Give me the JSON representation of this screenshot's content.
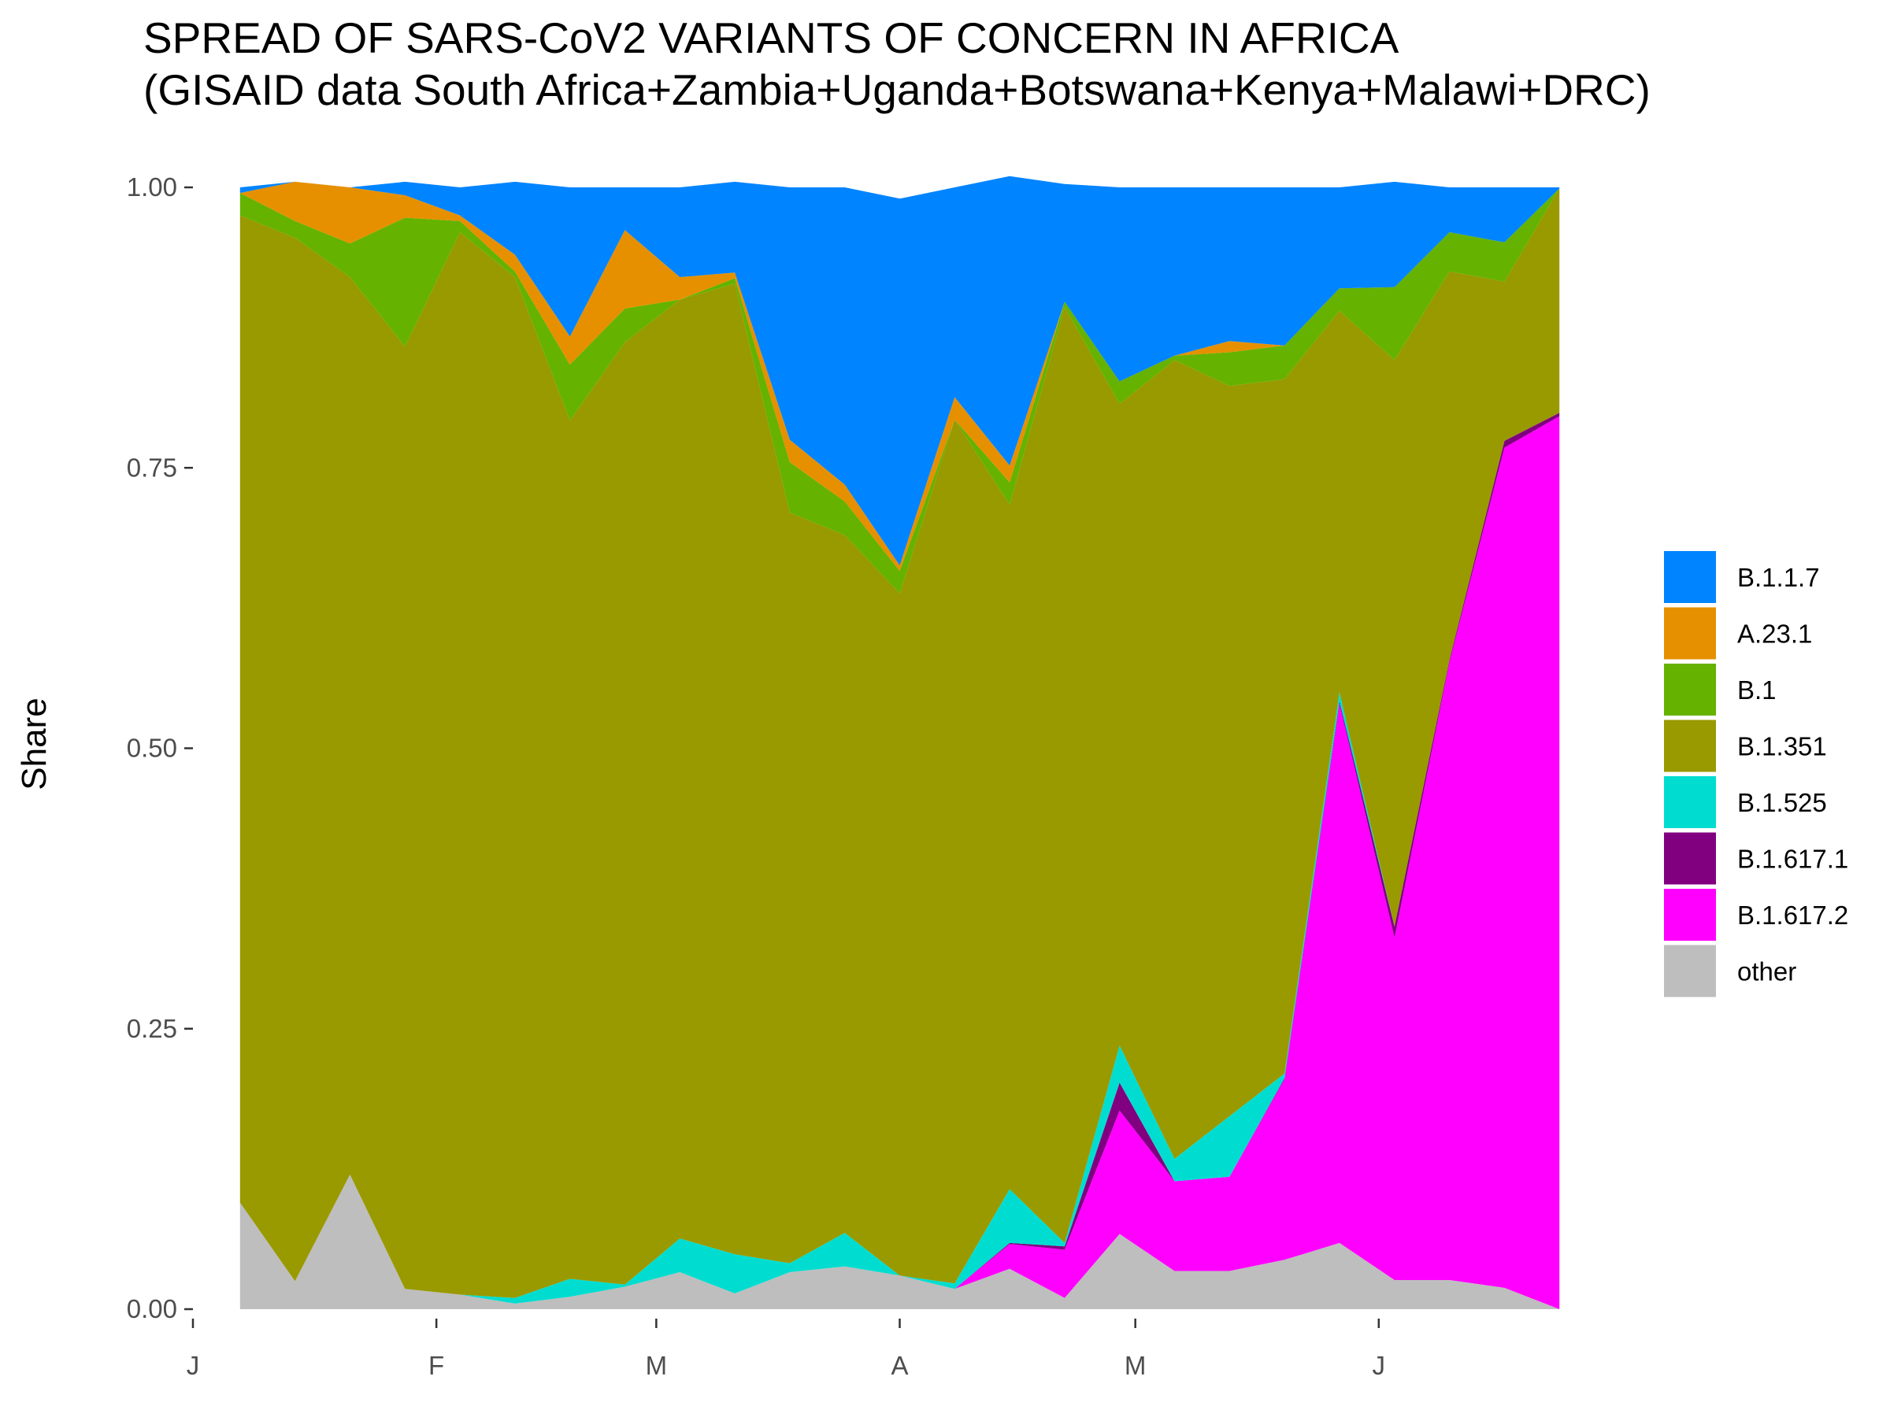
{
  "chart_data": {
    "type": "area",
    "stacked": "fill",
    "title": "SPREAD OF SARS-CoV2 VARIANTS OF CONCERN IN AFRICA",
    "subtitle": "(GISAID data South Africa+Zambia+Uganda+Botswana+Kenya+Malawi+DRC)",
    "xlabel": "",
    "ylabel": "Share",
    "ylim": [
      0,
      1
    ],
    "yticks": [
      "0.00",
      "0.25",
      "0.50",
      "0.75",
      "1.00"
    ],
    "xticks": [
      "J",
      "F",
      "M",
      "A",
      "M",
      "J"
    ],
    "xtick_dates": [
      "2021-01-01",
      "2021-02-01",
      "2021-03-01",
      "2021-04-01",
      "2021-05-01",
      "2021-06-01"
    ],
    "xlim": [
      "2021-01-01",
      "2021-06-30"
    ],
    "legend_position": "right",
    "grid": false,
    "x": [
      "2021-01-07",
      "2021-01-14",
      "2021-01-21",
      "2021-01-28",
      "2021-02-04",
      "2021-02-11",
      "2021-02-18",
      "2021-02-25",
      "2021-03-04",
      "2021-03-11",
      "2021-03-18",
      "2021-03-25",
      "2021-04-01",
      "2021-04-08",
      "2021-04-15",
      "2021-04-22",
      "2021-04-29",
      "2021-05-06",
      "2021-05-13",
      "2021-05-20",
      "2021-05-27",
      "2021-06-03",
      "2021-06-10",
      "2021-06-17",
      "2021-06-24"
    ],
    "series": [
      {
        "name": "other",
        "color": "#BEBEBE",
        "values": [
          0.095,
          0.025,
          0.12,
          0.018,
          0.013,
          0.005,
          0.011,
          0.02,
          0.033,
          0.014,
          0.033,
          0.038,
          0.03,
          0.018,
          0.036,
          0.01,
          0.067,
          0.034,
          0.034,
          0.044,
          0.059,
          0.026,
          0.026,
          0.019,
          0.0
        ]
      },
      {
        "name": "B.1.617.2",
        "color": "#FF00FF",
        "values": [
          0,
          0,
          0,
          0,
          0,
          0,
          0,
          0,
          0,
          0,
          0,
          0,
          0,
          0,
          0.022,
          0.043,
          0.11,
          0.08,
          0.084,
          0.161,
          0.481,
          0.305,
          0.551,
          0.749,
          0.796
        ]
      },
      {
        "name": "B.1.617.1",
        "color": "#800080",
        "values": [
          0,
          0,
          0,
          0,
          0,
          0,
          0,
          0,
          0,
          0,
          0,
          0,
          0,
          0,
          0.001,
          0.003,
          0.025,
          0,
          0,
          0.001,
          0.002,
          0.01,
          0.002,
          0.006,
          0.003
        ]
      },
      {
        "name": "B.1.525",
        "color": "#00DDD0",
        "values": [
          0,
          0,
          0,
          0,
          0,
          0.005,
          0.016,
          0.002,
          0.03,
          0.035,
          0.008,
          0.03,
          0,
          0.005,
          0.048,
          0.003,
          0.033,
          0.02,
          0.054,
          0.004,
          0.008,
          0,
          0,
          0,
          0
        ]
      },
      {
        "name": "B.1.351",
        "color": "#999900",
        "values": [
          0.88,
          0.93,
          0.8,
          0.84,
          0.947,
          0.91,
          0.765,
          0.84,
          0.837,
          0.865,
          0.669,
          0.622,
          0.608,
          0.77,
          0.61,
          0.834,
          0.572,
          0.712,
          0.651,
          0.619,
          0.34,
          0.505,
          0.346,
          0.142,
          0.2
        ]
      },
      {
        "name": "B.1",
        "color": "#66B200",
        "values": [
          0.02,
          0.015,
          0.03,
          0.115,
          0.01,
          0.005,
          0.05,
          0.03,
          0,
          0.005,
          0.045,
          0.03,
          0.02,
          0.0,
          0.02,
          0.005,
          0.02,
          0.004,
          0.03,
          0.03,
          0.02,
          0.065,
          0.035,
          0.035,
          0.0
        ]
      },
      {
        "name": "A.23.1",
        "color": "#E69000",
        "values": [
          0,
          0.035,
          0.05,
          0.02,
          0.005,
          0.015,
          0.025,
          0.07,
          0.02,
          0.005,
          0.02,
          0.015,
          0.005,
          0.02,
          0.015,
          0,
          0,
          0.0,
          0.01,
          0,
          0,
          0,
          0,
          0,
          0
        ]
      },
      {
        "name": "B.1.1.7",
        "color": "#0084FF",
        "values": [
          0.005,
          0.0,
          0.0,
          0.012,
          0.025,
          0.065,
          0.133,
          0.038,
          0.08,
          0.081,
          0.225,
          0.265,
          0.327,
          0.187,
          0.258,
          0.105,
          0.173,
          0.15,
          0.137,
          0.141,
          0.09,
          0.094,
          0.04,
          0.049,
          0.001
        ]
      }
    ],
    "legend_order": [
      "B.1.1.7",
      "A.23.1",
      "B.1",
      "B.1.351",
      "B.1.525",
      "B.1.617.1",
      "B.1.617.2",
      "other"
    ]
  }
}
